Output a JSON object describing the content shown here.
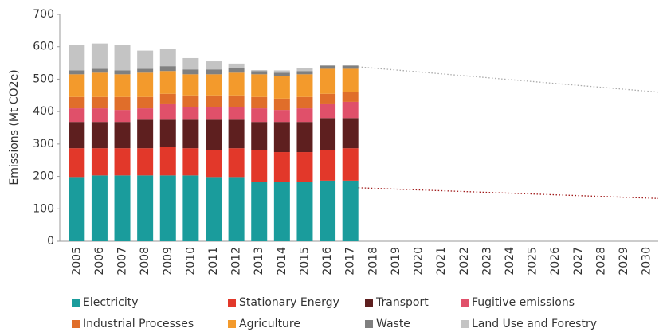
{
  "chart_data": {
    "type": "stacked_bar",
    "y_label": "Emissions (Mt CO2e)",
    "categories": [
      "2005",
      "2006",
      "2007",
      "2008",
      "2009",
      "2010",
      "2011",
      "2012",
      "2013",
      "2014",
      "2015",
      "2016",
      "2017",
      "2018",
      "2019",
      "2020",
      "2021",
      "2022",
      "2023",
      "2024",
      "2025",
      "2026",
      "2027",
      "2028",
      "2029",
      "2030"
    ],
    "series": [
      {
        "name": "Electricity",
        "color": "#1a9c9c",
        "values": [
          198,
          203,
          203,
          203,
          203,
          203,
          198,
          198,
          182,
          182,
          182,
          187,
          187,
          null,
          null,
          null,
          null,
          null,
          null,
          null,
          null,
          null,
          null,
          null,
          null,
          null
        ]
      },
      {
        "name": "Stationary Energy",
        "color": "#e2382a",
        "values": [
          89,
          84,
          84,
          84,
          89,
          84,
          82,
          89,
          98,
          93,
          93,
          93,
          100,
          null,
          null,
          null,
          null,
          null,
          null,
          null,
          null,
          null,
          null,
          null,
          null,
          null
        ]
      },
      {
        "name": "Transport",
        "color": "#5e1f1f",
        "values": [
          81,
          81,
          81,
          88,
          83,
          88,
          95,
          88,
          88,
          93,
          93,
          100,
          93,
          null,
          null,
          null,
          null,
          null,
          null,
          null,
          null,
          null,
          null,
          null,
          null,
          null
        ]
      },
      {
        "name": "Fugitive emissions",
        "color": "#e0506a",
        "values": [
          42,
          42,
          37,
          35,
          50,
          40,
          40,
          40,
          42,
          37,
          42,
          45,
          50,
          null,
          null,
          null,
          null,
          null,
          null,
          null,
          null,
          null,
          null,
          null,
          null,
          null
        ]
      },
      {
        "name": "Industrial Processes",
        "color": "#e06e2a",
        "values": [
          35,
          35,
          40,
          35,
          30,
          35,
          35,
          35,
          35,
          35,
          35,
          30,
          30,
          null,
          null,
          null,
          null,
          null,
          null,
          null,
          null,
          null,
          null,
          null,
          null,
          null
        ]
      },
      {
        "name": "Agriculture",
        "color": "#f39a2c",
        "values": [
          70,
          75,
          70,
          75,
          70,
          65,
          65,
          70,
          70,
          70,
          70,
          77,
          72,
          null,
          null,
          null,
          null,
          null,
          null,
          null,
          null,
          null,
          null,
          null,
          null,
          null
        ]
      },
      {
        "name": "Waste",
        "color": "#808080",
        "values": [
          12,
          12,
          12,
          12,
          15,
          15,
          15,
          15,
          10,
          10,
          10,
          10,
          10,
          null,
          null,
          null,
          null,
          null,
          null,
          null,
          null,
          null,
          null,
          null,
          null,
          null
        ]
      },
      {
        "name": "Land Use and Forestry",
        "color": "#c4c4c4",
        "values": [
          78,
          78,
          78,
          56,
          52,
          35,
          25,
          13,
          3,
          7,
          8,
          0,
          0,
          null,
          null,
          null,
          null,
          null,
          null,
          null,
          null,
          null,
          null,
          null,
          null,
          null
        ]
      }
    ],
    "trend_lines": [
      {
        "color": "#aaaaaa",
        "x": [
          "2017",
          "2030"
        ],
        "values": [
          538,
          460
        ]
      },
      {
        "color": "#a01818",
        "x": [
          "2017",
          "2030"
        ],
        "values": [
          165,
          132
        ]
      }
    ],
    "ylim": [
      0,
      700
    ],
    "yticks": [
      0,
      100,
      200,
      300,
      400,
      500,
      600,
      700
    ]
  }
}
